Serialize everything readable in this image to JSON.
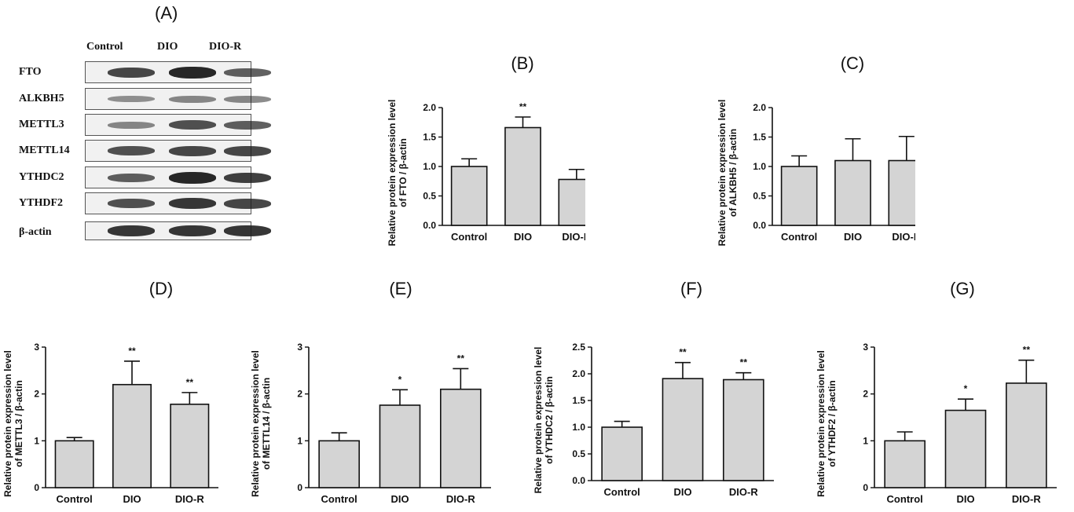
{
  "blot": {
    "panel": "(A)",
    "columns": [
      "Control",
      "DIO",
      "DIO-R"
    ],
    "rows": [
      {
        "name": "FTO",
        "intensity": [
          0.75,
          0.95,
          0.6
        ]
      },
      {
        "name": "ALKBH5",
        "intensity": [
          0.3,
          0.35,
          0.35
        ]
      },
      {
        "name": "METTL3",
        "intensity": [
          0.35,
          0.7,
          0.6
        ]
      },
      {
        "name": "METTL14",
        "intensity": [
          0.7,
          0.75,
          0.75
        ]
      },
      {
        "name": "YTHDC2",
        "intensity": [
          0.6,
          0.95,
          0.8
        ]
      },
      {
        "name": "YTHDF2",
        "intensity": [
          0.7,
          0.85,
          0.75
        ]
      },
      {
        "name": "β-actin",
        "intensity": [
          0.85,
          0.85,
          0.85
        ]
      }
    ]
  },
  "colors": {
    "bar_fill": "#d4d4d4",
    "bar_stroke": "#111111",
    "band": "#1e1e1e"
  },
  "chart_data": [
    {
      "panel": "(B)",
      "type": "bar",
      "categories": [
        "Control",
        "DIO",
        "DIO-R"
      ],
      "values": [
        1.0,
        1.66,
        0.78
      ],
      "errors": [
        0.13,
        0.18,
        0.17
      ],
      "significance": [
        "",
        "**",
        ""
      ],
      "ylabel": "Relative protein expression level\nof FTO / β-actin",
      "ylim": [
        0,
        2.0
      ],
      "yticks": [
        "0.0",
        "0.5",
        "1.0",
        "1.5",
        "2.0"
      ]
    },
    {
      "panel": "(C)",
      "type": "bar",
      "categories": [
        "Control",
        "DIO",
        "DIO-R"
      ],
      "values": [
        1.0,
        1.1,
        1.1
      ],
      "errors": [
        0.18,
        0.37,
        0.41
      ],
      "significance": [
        "",
        "",
        ""
      ],
      "ylabel": "Relative protein expression level\nof ALKBH5 / β-actin",
      "ylim": [
        0,
        2.0
      ],
      "yticks": [
        "0.0",
        "0.5",
        "1.0",
        "1.5",
        "2.0"
      ]
    },
    {
      "panel": "(D)",
      "type": "bar",
      "categories": [
        "Control",
        "DIO",
        "DIO-R"
      ],
      "values": [
        1.0,
        2.2,
        1.78
      ],
      "errors": [
        0.07,
        0.5,
        0.25
      ],
      "significance": [
        "",
        "**",
        "**"
      ],
      "ylabel": "Relative protein expression level\nof METTL3 / β-actin",
      "ylim": [
        0,
        3
      ],
      "yticks": [
        "0",
        "1",
        "2",
        "3"
      ]
    },
    {
      "panel": "(E)",
      "type": "bar",
      "categories": [
        "Control",
        "DIO",
        "DIO-R"
      ],
      "values": [
        1.0,
        1.76,
        2.1
      ],
      "errors": [
        0.17,
        0.33,
        0.44
      ],
      "significance": [
        "",
        "*",
        "**"
      ],
      "ylabel": "Relative protein expression level\nof METTL14 / β-actin",
      "ylim": [
        0,
        3
      ],
      "yticks": [
        "0",
        "1",
        "2",
        "3"
      ]
    },
    {
      "panel": "(F)",
      "type": "bar",
      "categories": [
        "Control",
        "DIO",
        "DIO-R"
      ],
      "values": [
        1.0,
        1.91,
        1.89
      ],
      "errors": [
        0.11,
        0.3,
        0.13
      ],
      "significance": [
        "",
        "**",
        "**"
      ],
      "ylabel": "Relative protein expression level\nof YTHDC2 / β-actin",
      "ylim": [
        0,
        2.5
      ],
      "yticks": [
        "0.0",
        "0.5",
        "1.0",
        "1.5",
        "2.0",
        "2.5"
      ]
    },
    {
      "panel": "(G)",
      "type": "bar",
      "categories": [
        "Control",
        "DIO",
        "DIO-R"
      ],
      "values": [
        1.0,
        1.65,
        2.23
      ],
      "errors": [
        0.19,
        0.24,
        0.49
      ],
      "significance": [
        "",
        "*",
        "**"
      ],
      "ylabel": "Relative protein expression level\nof YTHDF2 / β-actin",
      "ylim": [
        0,
        3
      ],
      "yticks": [
        "0",
        "1",
        "2",
        "3"
      ]
    }
  ]
}
